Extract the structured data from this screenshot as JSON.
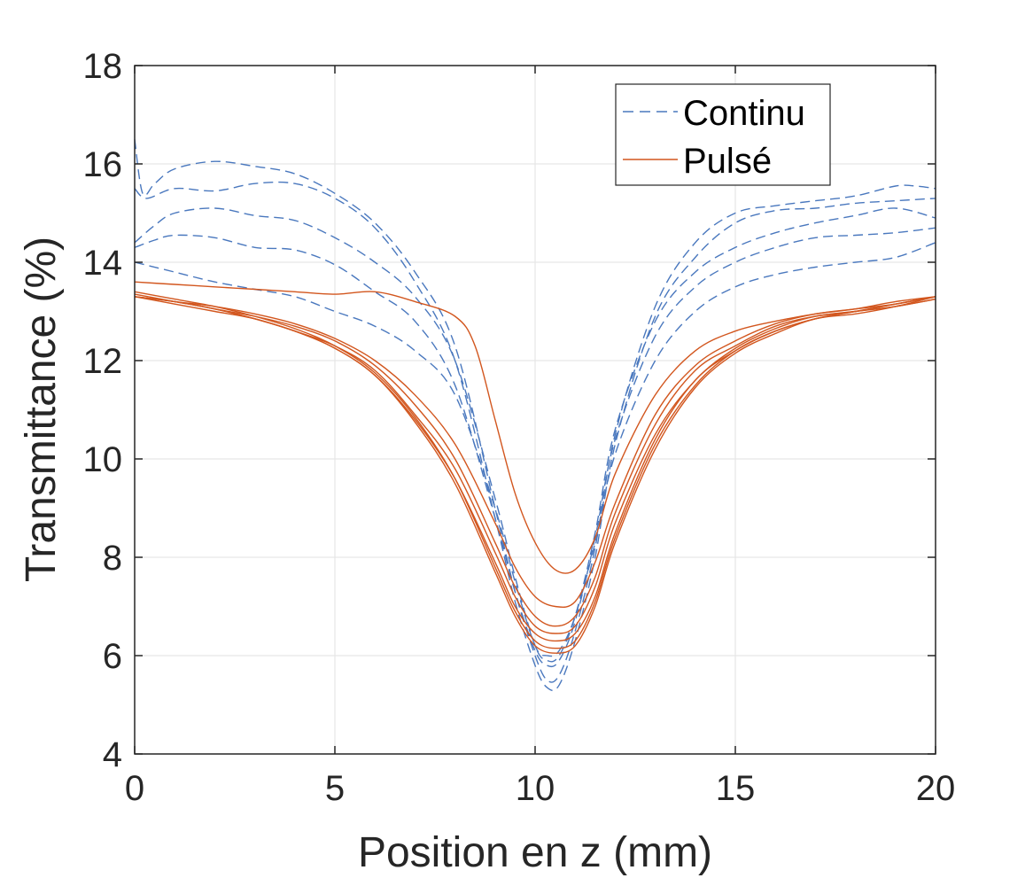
{
  "chart_data": {
    "type": "line",
    "title": "",
    "xlabel": "Position en z (mm)",
    "ylabel": "Transmittance (%)",
    "xlim": [
      0,
      20
    ],
    "ylim": [
      4,
      18
    ],
    "xticks": [
      "0",
      "5",
      "10",
      "15",
      "20"
    ],
    "yticks": [
      "4",
      "6",
      "8",
      "10",
      "12",
      "14",
      "16",
      "18"
    ],
    "grid": true,
    "legend_position": "top-right",
    "colors": {
      "continu": "#4A78BE",
      "pulse": "#D2561E",
      "axis": "#262626",
      "grid": "#E6E6E6"
    },
    "legend": [
      "Continu",
      "Pulsé"
    ],
    "series": [
      {
        "name": "Continu",
        "style": "dashed",
        "points": [
          [
            0,
            16.5
          ],
          [
            0.2,
            15.4
          ],
          [
            0.5,
            15.6
          ],
          [
            1,
            15.9
          ],
          [
            2,
            16.05
          ],
          [
            3,
            15.95
          ],
          [
            4,
            15.8
          ],
          [
            5,
            15.4
          ],
          [
            6,
            14.8
          ],
          [
            7,
            13.8
          ],
          [
            8,
            12.3
          ],
          [
            9,
            9.0
          ],
          [
            9.5,
            7.3
          ],
          [
            10,
            6.0
          ],
          [
            10.3,
            5.5
          ],
          [
            10.6,
            5.6
          ],
          [
            11,
            6.5
          ],
          [
            11.5,
            8.2
          ],
          [
            12,
            10.5
          ],
          [
            13,
            13.1
          ],
          [
            14,
            14.4
          ],
          [
            15,
            15.0
          ],
          [
            16,
            15.15
          ],
          [
            17,
            15.25
          ],
          [
            18,
            15.35
          ],
          [
            19,
            15.55
          ],
          [
            19.5,
            15.55
          ],
          [
            20,
            15.5
          ]
        ]
      },
      {
        "name": "Continu",
        "style": "dashed",
        "points": [
          [
            0,
            15.5
          ],
          [
            0.3,
            15.3
          ],
          [
            1,
            15.5
          ],
          [
            2,
            15.45
          ],
          [
            3,
            15.6
          ],
          [
            4,
            15.6
          ],
          [
            5,
            15.3
          ],
          [
            6,
            14.7
          ],
          [
            7,
            13.6
          ],
          [
            8,
            12.0
          ],
          [
            9,
            8.8
          ],
          [
            9.5,
            7.1
          ],
          [
            10,
            5.8
          ],
          [
            10.3,
            5.35
          ],
          [
            10.6,
            5.4
          ],
          [
            11,
            6.3
          ],
          [
            11.5,
            8.0
          ],
          [
            12,
            10.3
          ],
          [
            13,
            12.9
          ],
          [
            14,
            14.1
          ],
          [
            15,
            14.8
          ],
          [
            16,
            15.05
          ],
          [
            17,
            15.1
          ],
          [
            18,
            15.2
          ],
          [
            19,
            15.25
          ],
          [
            20,
            15.3
          ]
        ]
      },
      {
        "name": "Continu",
        "style": "dashed",
        "points": [
          [
            0,
            14.4
          ],
          [
            0.5,
            14.75
          ],
          [
            1,
            15.0
          ],
          [
            2,
            15.1
          ],
          [
            3,
            14.95
          ],
          [
            4,
            14.85
          ],
          [
            5,
            14.5
          ],
          [
            6,
            14.0
          ],
          [
            7,
            13.3
          ],
          [
            8,
            12.0
          ],
          [
            9,
            9.2
          ],
          [
            9.5,
            7.6
          ],
          [
            10,
            6.2
          ],
          [
            10.3,
            5.9
          ],
          [
            10.6,
            6.0
          ],
          [
            11,
            6.8
          ],
          [
            11.5,
            8.5
          ],
          [
            12,
            10.6
          ],
          [
            13,
            12.8
          ],
          [
            14,
            13.8
          ],
          [
            15,
            14.3
          ],
          [
            16,
            14.6
          ],
          [
            17,
            14.8
          ],
          [
            18,
            14.95
          ],
          [
            19,
            15.1
          ],
          [
            20,
            14.9
          ]
        ]
      },
      {
        "name": "Continu",
        "style": "dashed",
        "points": [
          [
            0,
            14.3
          ],
          [
            0.5,
            14.45
          ],
          [
            1,
            14.55
          ],
          [
            2,
            14.5
          ],
          [
            3,
            14.3
          ],
          [
            4,
            14.25
          ],
          [
            5,
            13.95
          ],
          [
            6,
            13.4
          ],
          [
            7,
            12.8
          ],
          [
            8,
            11.5
          ],
          [
            9,
            8.8
          ],
          [
            9.5,
            7.3
          ],
          [
            10,
            6.1
          ],
          [
            10.3,
            5.8
          ],
          [
            10.6,
            5.9
          ],
          [
            11,
            6.7
          ],
          [
            11.5,
            8.4
          ],
          [
            12,
            10.4
          ],
          [
            13,
            12.5
          ],
          [
            14,
            13.5
          ],
          [
            15,
            14.0
          ],
          [
            16,
            14.3
          ],
          [
            17,
            14.5
          ],
          [
            18,
            14.55
          ],
          [
            19,
            14.6
          ],
          [
            20,
            14.7
          ]
        ]
      },
      {
        "name": "Continu",
        "style": "dashed",
        "points": [
          [
            0,
            14.0
          ],
          [
            1,
            13.8
          ],
          [
            2,
            13.6
          ],
          [
            3,
            13.45
          ],
          [
            4,
            13.3
          ],
          [
            5,
            13.0
          ],
          [
            6,
            12.7
          ],
          [
            7,
            12.2
          ],
          [
            8,
            11.3
          ],
          [
            9,
            9.0
          ],
          [
            9.5,
            7.5
          ],
          [
            10,
            6.2
          ],
          [
            10.3,
            6.0
          ],
          [
            10.6,
            6.1
          ],
          [
            11,
            6.8
          ],
          [
            11.5,
            8.3
          ],
          [
            12,
            10.1
          ],
          [
            13,
            12.0
          ],
          [
            14,
            13.0
          ],
          [
            15,
            13.5
          ],
          [
            16,
            13.75
          ],
          [
            17,
            13.9
          ],
          [
            18,
            14.0
          ],
          [
            19,
            14.1
          ],
          [
            20,
            14.4
          ]
        ]
      },
      {
        "name": "Pulsé",
        "style": "solid",
        "points": [
          [
            0,
            13.6
          ],
          [
            1,
            13.55
          ],
          [
            2,
            13.5
          ],
          [
            3,
            13.45
          ],
          [
            4,
            13.4
          ],
          [
            5,
            13.35
          ],
          [
            6,
            13.4
          ],
          [
            7,
            13.2
          ],
          [
            8,
            12.9
          ],
          [
            8.5,
            12.3
          ],
          [
            9,
            10.8
          ],
          [
            9.5,
            9.3
          ],
          [
            10,
            8.3
          ],
          [
            10.5,
            7.75
          ],
          [
            11,
            7.75
          ],
          [
            11.5,
            8.4
          ],
          [
            12,
            9.7
          ],
          [
            13,
            11.3
          ],
          [
            14,
            12.2
          ],
          [
            15,
            12.6
          ],
          [
            16,
            12.8
          ],
          [
            17,
            12.95
          ],
          [
            18,
            13.05
          ],
          [
            19,
            13.2
          ],
          [
            20,
            13.3
          ]
        ]
      },
      {
        "name": "Pulsé",
        "style": "solid",
        "points": [
          [
            0,
            13.3
          ],
          [
            1,
            13.2
          ],
          [
            2,
            13.1
          ],
          [
            3,
            12.95
          ],
          [
            4,
            12.75
          ],
          [
            5,
            12.45
          ],
          [
            6,
            12.0
          ],
          [
            7,
            11.3
          ],
          [
            8,
            10.3
          ],
          [
            9,
            8.7
          ],
          [
            9.5,
            7.8
          ],
          [
            10,
            7.2
          ],
          [
            10.5,
            7.0
          ],
          [
            11,
            7.1
          ],
          [
            11.5,
            7.9
          ],
          [
            12,
            9.1
          ],
          [
            13,
            10.9
          ],
          [
            14,
            11.9
          ],
          [
            15,
            12.4
          ],
          [
            16,
            12.75
          ],
          [
            17,
            12.95
          ],
          [
            18,
            13.05
          ],
          [
            19,
            13.15
          ],
          [
            20,
            13.3
          ]
        ]
      },
      {
        "name": "Pulsé",
        "style": "solid",
        "points": [
          [
            0,
            13.3
          ],
          [
            1,
            13.2
          ],
          [
            2,
            13.05
          ],
          [
            3,
            12.9
          ],
          [
            4,
            12.7
          ],
          [
            5,
            12.4
          ],
          [
            6,
            11.9
          ],
          [
            7,
            11.1
          ],
          [
            8,
            10.0
          ],
          [
            9,
            8.3
          ],
          [
            9.5,
            7.4
          ],
          [
            10,
            6.8
          ],
          [
            10.5,
            6.6
          ],
          [
            11,
            6.8
          ],
          [
            11.5,
            7.6
          ],
          [
            12,
            8.9
          ],
          [
            13,
            10.7
          ],
          [
            14,
            11.8
          ],
          [
            15,
            12.3
          ],
          [
            16,
            12.7
          ],
          [
            17,
            12.9
          ],
          [
            18,
            13.0
          ],
          [
            19,
            13.15
          ],
          [
            20,
            13.3
          ]
        ]
      },
      {
        "name": "Pulsé",
        "style": "solid",
        "points": [
          [
            0,
            13.3
          ],
          [
            1,
            13.15
          ],
          [
            2,
            13.0
          ],
          [
            3,
            12.85
          ],
          [
            4,
            12.6
          ],
          [
            5,
            12.3
          ],
          [
            6,
            11.8
          ],
          [
            7,
            10.9
          ],
          [
            8,
            9.8
          ],
          [
            9,
            8.1
          ],
          [
            9.5,
            7.2
          ],
          [
            10,
            6.6
          ],
          [
            10.5,
            6.45
          ],
          [
            11,
            6.6
          ],
          [
            11.5,
            7.4
          ],
          [
            12,
            8.7
          ],
          [
            13,
            10.5
          ],
          [
            14,
            11.6
          ],
          [
            15,
            12.25
          ],
          [
            16,
            12.65
          ],
          [
            17,
            12.9
          ],
          [
            18,
            13.0
          ],
          [
            19,
            13.1
          ],
          [
            20,
            13.25
          ]
        ]
      },
      {
        "name": "Pulsé",
        "style": "solid",
        "points": [
          [
            0,
            13.35
          ],
          [
            1,
            13.2
          ],
          [
            2,
            13.05
          ],
          [
            3,
            12.85
          ],
          [
            4,
            12.6
          ],
          [
            5,
            12.25
          ],
          [
            6,
            11.7
          ],
          [
            7,
            10.8
          ],
          [
            8,
            9.6
          ],
          [
            9,
            7.9
          ],
          [
            9.5,
            7.0
          ],
          [
            10,
            6.45
          ],
          [
            10.5,
            6.3
          ],
          [
            11,
            6.45
          ],
          [
            11.5,
            7.2
          ],
          [
            12,
            8.5
          ],
          [
            13,
            10.4
          ],
          [
            14,
            11.6
          ],
          [
            15,
            12.2
          ],
          [
            16,
            12.6
          ],
          [
            17,
            12.85
          ],
          [
            18,
            13.0
          ],
          [
            19,
            13.15
          ],
          [
            20,
            13.3
          ]
        ]
      },
      {
        "name": "Pulsé",
        "style": "solid",
        "points": [
          [
            0,
            13.4
          ],
          [
            1,
            13.25
          ],
          [
            2,
            13.1
          ],
          [
            3,
            12.9
          ],
          [
            4,
            12.65
          ],
          [
            5,
            12.3
          ],
          [
            6,
            11.75
          ],
          [
            7,
            10.85
          ],
          [
            8,
            9.6
          ],
          [
            9,
            7.8
          ],
          [
            9.5,
            6.9
          ],
          [
            10,
            6.3
          ],
          [
            10.5,
            6.15
          ],
          [
            11,
            6.3
          ],
          [
            11.5,
            7.1
          ],
          [
            12,
            8.4
          ],
          [
            13,
            10.3
          ],
          [
            14,
            11.5
          ],
          [
            15,
            12.2
          ],
          [
            16,
            12.6
          ],
          [
            17,
            12.85
          ],
          [
            18,
            13.0
          ],
          [
            19,
            13.1
          ],
          [
            20,
            13.25
          ]
        ]
      },
      {
        "name": "Pulsé",
        "style": "solid",
        "points": [
          [
            0,
            13.3
          ],
          [
            1,
            13.2
          ],
          [
            2,
            13.05
          ],
          [
            3,
            12.85
          ],
          [
            4,
            12.6
          ],
          [
            5,
            12.25
          ],
          [
            6,
            11.7
          ],
          [
            7,
            10.75
          ],
          [
            8,
            9.5
          ],
          [
            9,
            7.7
          ],
          [
            9.5,
            6.8
          ],
          [
            10,
            6.2
          ],
          [
            10.5,
            6.05
          ],
          [
            11,
            6.2
          ],
          [
            11.5,
            7.0
          ],
          [
            12,
            8.3
          ],
          [
            13,
            10.2
          ],
          [
            14,
            11.45
          ],
          [
            15,
            12.15
          ],
          [
            16,
            12.55
          ],
          [
            17,
            12.85
          ],
          [
            18,
            12.95
          ],
          [
            19,
            13.1
          ],
          [
            20,
            13.3
          ]
        ]
      }
    ]
  }
}
